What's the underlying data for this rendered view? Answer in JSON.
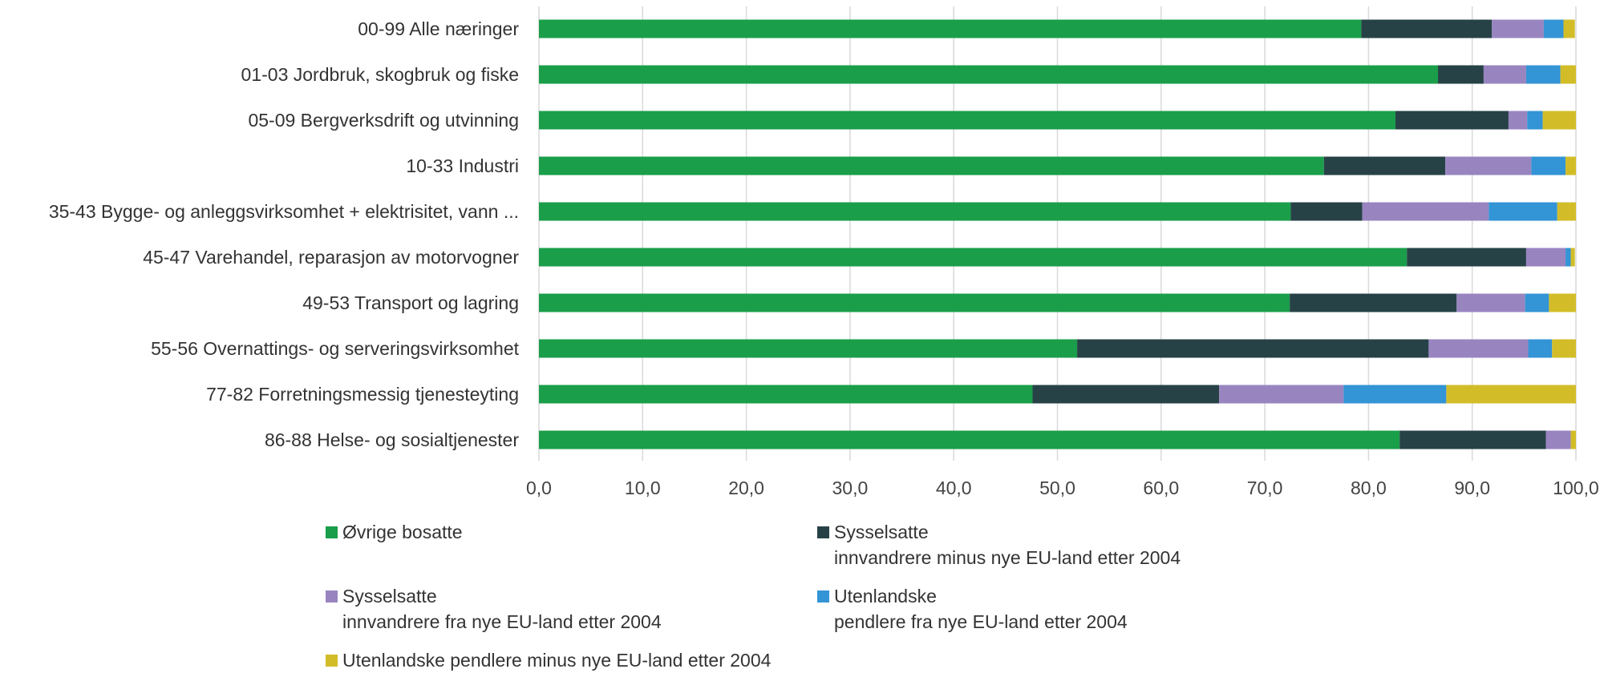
{
  "chart_data": {
    "type": "bar",
    "orientation": "horizontal",
    "stacked": true,
    "categories": [
      "00-99 Alle næringer",
      "01-03 Jordbruk, skogbruk og fiske",
      "05-09 Bergverksdrift og utvinning",
      "10-33 Industri",
      "35-43 Bygge- og anleggsvirksomhet + elektrisitet, vann ...",
      "45-47 Varehandel, reparasjon av motorvogner",
      "49-53 Transport og lagring",
      "55-56 Overnattings- og serveringsvirksomhet",
      "77-82 Forretningsmessig tjenesteyting",
      "86-88 Helse- og sosialtjenester"
    ],
    "series": [
      {
        "name": "Øvrige bosatte",
        "color": "#1a9e4a",
        "values": [
          79.3,
          86.7,
          82.6,
          75.7,
          72.5,
          83.7,
          72.4,
          51.9,
          47.6,
          83.0
        ]
      },
      {
        "name": "Sysselsatte\ninnvandrere minus nye EU-land etter 2004",
        "color": "#274247",
        "values": [
          12.6,
          4.4,
          10.9,
          11.7,
          6.9,
          11.5,
          16.1,
          33.9,
          18.0,
          14.1
        ]
      },
      {
        "name": "Sysselsatte\ninnvandrere fra nye EU-land etter 2004",
        "color": "#9885c0",
        "values": [
          5.0,
          4.1,
          1.8,
          8.3,
          12.2,
          3.8,
          6.6,
          9.6,
          12.0,
          2.4
        ]
      },
      {
        "name": "Utenlandske\npendlere fra nye EU-land etter 2004",
        "color": "#3394d6",
        "values": [
          1.9,
          3.3,
          1.5,
          3.3,
          6.6,
          0.5,
          2.3,
          2.3,
          9.9,
          0.0
        ]
      },
      {
        "name": "Utenlandske pendlere minus nye EU-land etter 2004",
        "color": "#d2bd29",
        "values": [
          1.1,
          1.5,
          3.2,
          1.0,
          1.8,
          0.4,
          2.6,
          2.3,
          12.5,
          0.5
        ]
      }
    ],
    "x_ticks": [
      "0,0",
      "10,0",
      "20,0",
      "30,0",
      "40,0",
      "50,0",
      "60,0",
      "70,0",
      "80,0",
      "90,0",
      "100,0"
    ],
    "xlim": [
      0,
      100
    ],
    "grid": "vertical",
    "legend_position": "bottom"
  }
}
